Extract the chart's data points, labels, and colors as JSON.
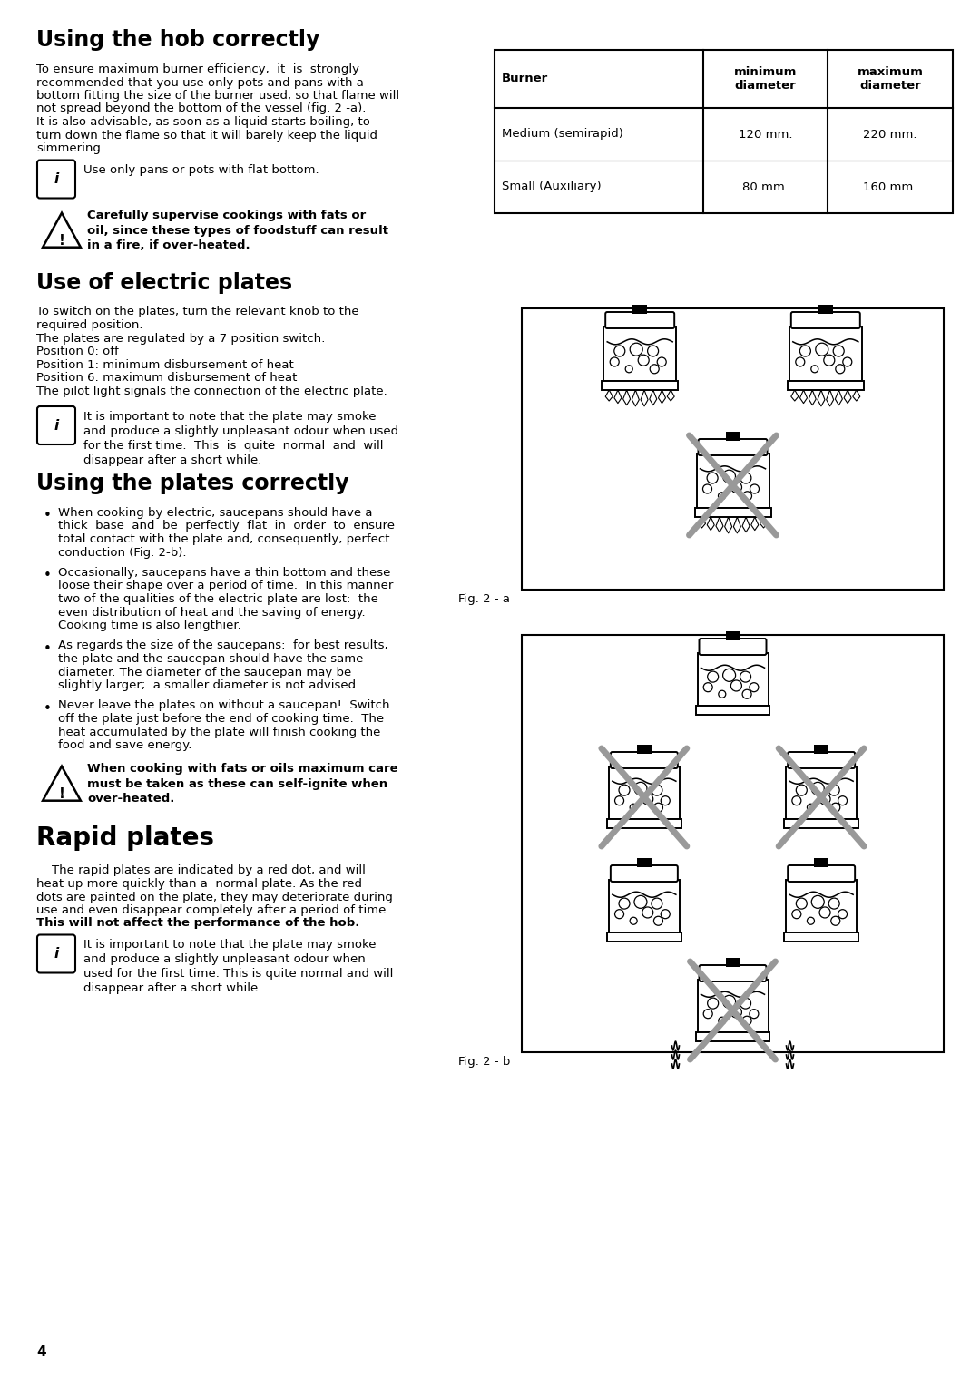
{
  "title1": "Using the hob correctly",
  "para1_lines": [
    "To ensure maximum burner efficiency,  it  is  strongly",
    "recommended that you use only pots and pans with a",
    "bottom fitting the size of the burner used, so that flame will",
    "not spread beyond the bottom of the vessel (fig. 2 -a).",
    "It is also advisable, as soon as a liquid starts boiling, to",
    "turn down the flame so that it will barely keep the liquid",
    "simmering."
  ],
  "info1_text": "Use only pans or pots with flat bottom.",
  "warn1_text": "Carefully supervise cookings with fats or\noil, since these types of foodstuff can result\nin a fire, if over-heated.",
  "title2": "Use of electric plates",
  "para2_lines": [
    "To switch on the plates, turn the relevant knob to the",
    "required position.",
    "The plates are regulated by a 7 position switch:",
    "Position 0: off",
    "Position 1: minimum disbursement of heat",
    "Position 6: maximum disbursement of heat",
    "The pilot light signals the connection of the electric plate."
  ],
  "info2_text": "It is important to note that the plate may smoke\nand produce a slightly unpleasant odour when used\nfor the first time.  This  is  quite  normal  and  will\ndisappear after a short while.",
  "title3": "Using the plates correctly",
  "bullets": [
    "When cooking by electric, saucepans should have a\nthick  base  and  be  perfectly  flat  in  order  to  ensure\ntotal contact with the plate and, consequently, perfect\nconduction (Fig. 2-b).",
    "Occasionally, saucepans have a thin bottom and these\nloose their shape over a period of time.  In this manner\ntwo of the qualities of the electric plate are lost:  the\neven distribution of heat and the saving of energy.\nCooking time is also lengthier.",
    "As regards the size of the saucepans:  for best results,\nthe plate and the saucepan should have the same\ndiameter. The diameter of the saucepan may be\nslightly larger;  a smaller diameter is not advised.",
    "Never leave the plates on without a saucepan!  Switch\noff the plate just before the end of cooking time.  The\nheat accumulated by the plate will finish cooking the\nfood and save energy."
  ],
  "warn2_text": "When cooking with fats or oils maximum care\nmust be taken as these can self-ignite when\nover-heated.",
  "title4": "Rapid plates",
  "para4_text": "    The rapid plates are indicated by a red dot, and will\nheat up more quickly than a  normal plate. As the red\ndots are painted on the plate, they may deteriorate during\nuse and even disappear completely after a period of time.",
  "para4_bold": "This will not affect the performance of the hob.",
  "info3_text": "It is important to note that the plate may smoke\nand produce a slightly unpleasant odour when\nused for the first time. This is quite normal and will\ndisappear after a short while.",
  "table_headers": [
    "Burner",
    "minimum\ndiameter",
    "maximum\ndiameter"
  ],
  "table_rows": [
    [
      "Medium (semirapid)",
      "120 mm.",
      "220 mm."
    ],
    [
      "Small (Auxiliary)",
      "80 mm.",
      "160 mm."
    ]
  ],
  "fig2a_label": "Fig. 2 - a",
  "fig2b_label": "Fig. 2 - b",
  "page_number": "4",
  "bg_color": "#ffffff",
  "lm": 0.04,
  "cs": 0.5,
  "rm": 0.975
}
